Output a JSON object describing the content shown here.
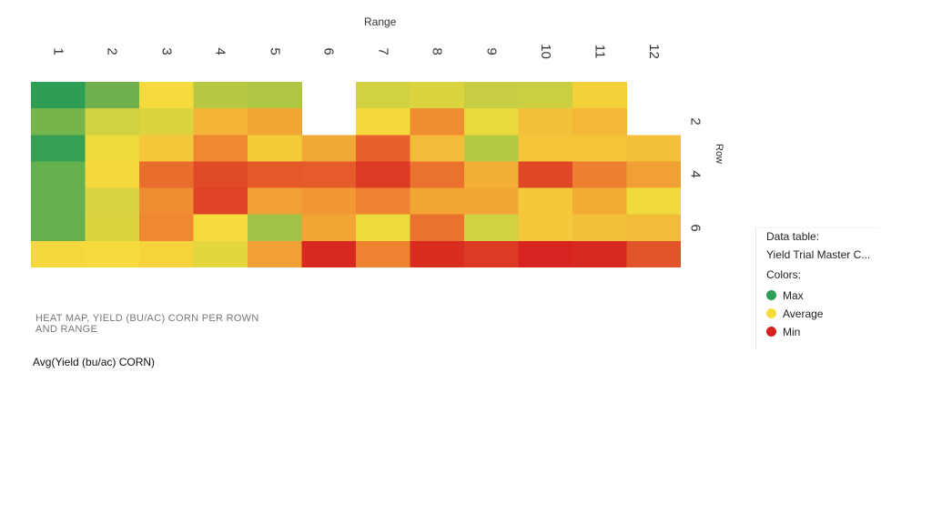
{
  "chart_data": {
    "type": "heatmap",
    "xlabel": "Range",
    "ylabel": "Row",
    "x_categories": [
      "1",
      "2",
      "3",
      "4",
      "5",
      "6",
      "7",
      "8",
      "9",
      "10",
      "11",
      "12"
    ],
    "y_categories": [
      "1",
      "2",
      "3",
      "4",
      "5",
      "6",
      "7"
    ],
    "row_tick_labels": [
      "2",
      "4",
      "6"
    ],
    "values": [
      [
        1.0,
        0.82,
        0.45,
        0.62,
        0.64,
        null,
        0.55,
        0.52,
        0.58,
        0.57,
        0.42,
        null
      ],
      [
        0.8,
        0.55,
        0.52,
        0.35,
        0.31,
        null,
        0.44,
        0.25,
        0.48,
        0.38,
        0.36,
        null
      ],
      [
        0.98,
        0.47,
        0.4,
        0.24,
        0.41,
        0.32,
        0.15,
        0.37,
        0.63,
        0.39,
        0.39,
        0.38
      ],
      [
        0.85,
        0.44,
        0.18,
        0.1,
        0.13,
        0.14,
        0.06,
        0.19,
        0.34,
        0.09,
        0.22,
        0.3
      ],
      [
        0.85,
        0.53,
        0.25,
        0.08,
        0.3,
        0.28,
        0.23,
        0.31,
        0.31,
        0.4,
        0.33,
        0.46
      ],
      [
        0.85,
        0.52,
        0.24,
        0.45,
        0.68,
        0.31,
        0.47,
        0.19,
        0.55,
        0.4,
        0.38,
        0.37
      ],
      [
        0.44,
        0.45,
        0.43,
        0.5,
        0.3,
        0.02,
        0.23,
        0.03,
        0.06,
        0.01,
        0.02,
        0.12
      ]
    ],
    "colors": {
      "max": "#2e9e55",
      "average": "#f5dc3c",
      "min": "#d62020"
    },
    "caption": "HEAT MAP, YIELD (BU/AC) CORN PER ROWN AND RANGE",
    "measure": "Avg(Yield (bu/ac) CORN)",
    "legend": {
      "title": "Data table:",
      "table_name": "Yield Trial Master C...",
      "colors_label": "Colors:",
      "items": [
        {
          "label": "Max",
          "color": "#2e9e55"
        },
        {
          "label": "Average",
          "color": "#f5dc3c"
        },
        {
          "label": "Min",
          "color": "#d62020"
        }
      ]
    }
  }
}
